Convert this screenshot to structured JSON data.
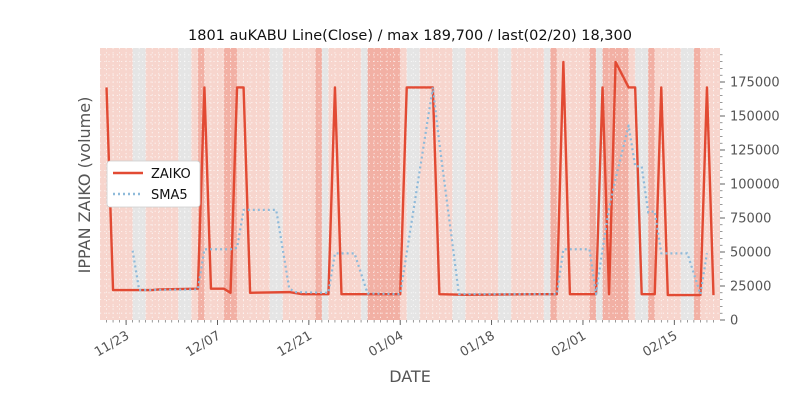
{
  "chart_data": {
    "type": "line",
    "title": "1801 auKABU Line(Close) / max 189,700 / last(02/20) 18,300",
    "xlabel": "DATE",
    "ylabel": "IPPAN ZAIKO (volume)",
    "ylim": [
      0,
      200000
    ],
    "xlim": [
      "2018-11-19",
      "2019-02-22"
    ],
    "grid": true,
    "legend_position": "center-left",
    "y_axis_side": "right",
    "x_ticks": [
      {
        "date": "2018-11-23",
        "label": "11/23"
      },
      {
        "date": "2018-12-07",
        "label": "12/07"
      },
      {
        "date": "2018-12-21",
        "label": "12/21"
      },
      {
        "date": "2019-01-04",
        "label": "01/04"
      },
      {
        "date": "2019-01-18",
        "label": "01/18"
      },
      {
        "date": "2019-02-01",
        "label": "02/01"
      },
      {
        "date": "2019-02-15",
        "label": "02/15"
      }
    ],
    "y_ticks": [
      {
        "value": 0,
        "label": "0"
      },
      {
        "value": 25000,
        "label": "25000"
      },
      {
        "value": 50000,
        "label": "50000"
      },
      {
        "value": 75000,
        "label": "75000"
      },
      {
        "value": 100000,
        "label": "100000"
      },
      {
        "value": 125000,
        "label": "125000"
      },
      {
        "value": 150000,
        "label": "150000"
      },
      {
        "value": 175000,
        "label": "175000"
      }
    ],
    "highlight_ranges": [
      [
        "2018-12-04",
        "2018-12-05"
      ],
      [
        "2018-12-08",
        "2018-12-10"
      ],
      [
        "2018-12-22",
        "2018-12-23"
      ],
      [
        "2018-12-30",
        "2019-01-04"
      ],
      [
        "2019-01-27",
        "2019-01-28"
      ],
      [
        "2019-02-02",
        "2019-02-03"
      ],
      [
        "2019-02-04",
        "2019-02-08"
      ],
      [
        "2019-02-11",
        "2019-02-12"
      ],
      [
        "2019-02-18",
        "2019-02-19"
      ]
    ],
    "series": [
      {
        "name": "ZAIKO",
        "color": "#E24A33",
        "style": "solid",
        "points": [
          [
            "2018-11-20",
            171000
          ],
          [
            "2018-11-21",
            22000
          ],
          [
            "2018-11-27",
            22000
          ],
          [
            "2018-11-28",
            22500
          ],
          [
            "2018-12-04",
            23000
          ],
          [
            "2018-12-05",
            171000
          ],
          [
            "2018-12-06",
            23000
          ],
          [
            "2018-12-08",
            23000
          ],
          [
            "2018-12-09",
            20000
          ],
          [
            "2018-12-10",
            171000
          ],
          [
            "2018-12-11",
            171000
          ],
          [
            "2018-12-12",
            20000
          ],
          [
            "2018-12-18",
            20500
          ],
          [
            "2018-12-20",
            19000
          ],
          [
            "2018-12-24",
            19000
          ],
          [
            "2018-12-25",
            171000
          ],
          [
            "2018-12-26",
            19000
          ],
          [
            "2018-12-31",
            19000
          ],
          [
            "2019-01-03",
            19000
          ],
          [
            "2019-01-04",
            19000
          ],
          [
            "2019-01-05",
            171000
          ],
          [
            "2019-01-09",
            171000
          ],
          [
            "2019-01-10",
            19000
          ],
          [
            "2019-01-14",
            18500
          ],
          [
            "2019-01-25",
            19000
          ],
          [
            "2019-01-28",
            19000
          ],
          [
            "2019-01-29",
            189700
          ],
          [
            "2019-01-30",
            19000
          ],
          [
            "2019-02-03",
            19000
          ],
          [
            "2019-02-04",
            171000
          ],
          [
            "2019-02-05",
            19000
          ],
          [
            "2019-02-06",
            189700
          ],
          [
            "2019-02-08",
            171000
          ],
          [
            "2019-02-09",
            171000
          ],
          [
            "2019-02-10",
            19000
          ],
          [
            "2019-02-12",
            19000
          ],
          [
            "2019-02-13",
            171000
          ],
          [
            "2019-02-14",
            18300
          ],
          [
            "2019-02-19",
            18300
          ],
          [
            "2019-02-20",
            171000
          ],
          [
            "2019-02-21",
            18300
          ]
        ]
      },
      {
        "name": "SMA5",
        "color": "#8EBADA",
        "style": "dotted",
        "points": [
          [
            "2018-11-24",
            51000
          ],
          [
            "2018-11-25",
            22000
          ],
          [
            "2018-12-04",
            22500
          ],
          [
            "2018-12-05",
            52000
          ],
          [
            "2018-12-09",
            52000
          ],
          [
            "2018-12-10",
            53000
          ],
          [
            "2018-12-11",
            81000
          ],
          [
            "2018-12-16",
            81000
          ],
          [
            "2018-12-18",
            23000
          ],
          [
            "2018-12-19",
            20500
          ],
          [
            "2018-12-24",
            20000
          ],
          [
            "2018-12-25",
            49000
          ],
          [
            "2018-12-28",
            49000
          ],
          [
            "2018-12-30",
            19500
          ],
          [
            "2019-01-04",
            19000
          ],
          [
            "2019-01-09",
            171000
          ],
          [
            "2019-01-10",
            130000
          ],
          [
            "2019-01-13",
            19000
          ],
          [
            "2019-01-28",
            19000
          ],
          [
            "2019-01-29",
            52000
          ],
          [
            "2019-02-02",
            52000
          ],
          [
            "2019-02-03",
            19000
          ],
          [
            "2019-02-04",
            52000
          ],
          [
            "2019-02-05",
            82000
          ],
          [
            "2019-02-06",
            104000
          ],
          [
            "2019-02-08",
            143000
          ],
          [
            "2019-02-09",
            113000
          ],
          [
            "2019-02-10",
            113000
          ],
          [
            "2019-02-11",
            79000
          ],
          [
            "2019-02-12",
            80000
          ],
          [
            "2019-02-13",
            49000
          ],
          [
            "2019-02-16",
            49000
          ],
          [
            "2019-02-17",
            49000
          ],
          [
            "2019-02-19",
            19000
          ],
          [
            "2019-02-20",
            49000
          ]
        ]
      }
    ]
  }
}
